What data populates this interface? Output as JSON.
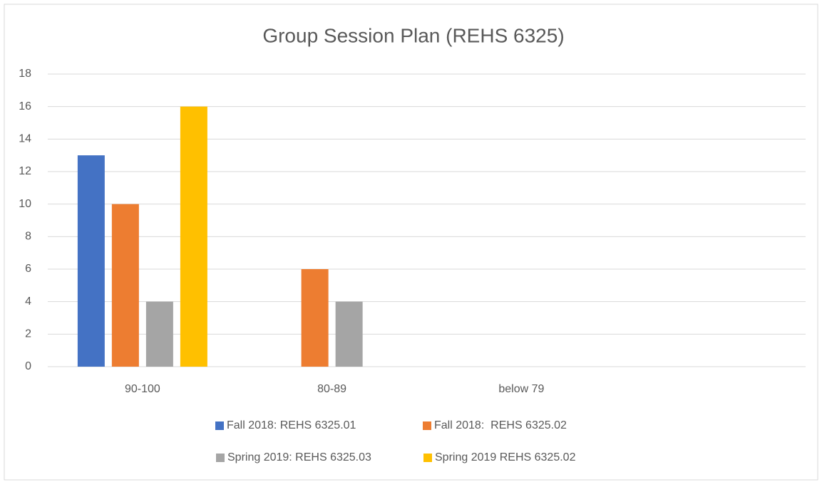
{
  "chart_data": {
    "type": "bar",
    "title": "Group Session Plan (REHS 6325)",
    "categories": [
      "90-100",
      "80-89",
      "below 79",
      null
    ],
    "series": [
      {
        "name": "Fall 2018: REHS 6325.01",
        "color": "#4472c4",
        "values": [
          13,
          0,
          0,
          null
        ]
      },
      {
        "name": "Fall 2018:  REHS 6325.02",
        "color": "#ed7d31",
        "values": [
          10,
          6,
          0,
          null
        ]
      },
      {
        "name": "Spring 2019: REHS 6325.03",
        "color": "#a5a5a5",
        "values": [
          4,
          4,
          0,
          null
        ]
      },
      {
        "name": "Spring 2019 REHS 6325.02",
        "color": "#ffc000",
        "values": [
          16,
          0,
          0,
          null
        ]
      }
    ],
    "ylim": [
      0,
      18
    ],
    "yticks": [
      0,
      2,
      4,
      6,
      8,
      10,
      12,
      14,
      16,
      18
    ],
    "grid": true,
    "legend": "bottom"
  }
}
